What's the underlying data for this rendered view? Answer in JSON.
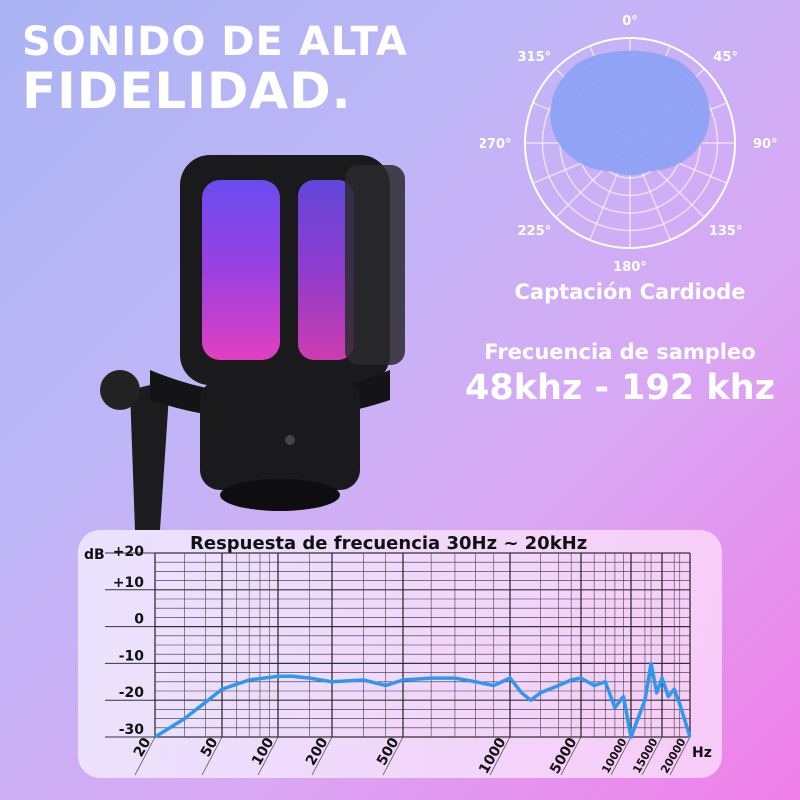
{
  "headline": {
    "line1": "SONIDO DE ALTA",
    "line2": "FIDELIDAD."
  },
  "polar": {
    "angle_labels": [
      "0°",
      "45°",
      "90°",
      "135°",
      "180°",
      "225°",
      "270°",
      "315°"
    ],
    "pattern": "cardioid",
    "fill_color": "#8ea2f4",
    "caption": "Captación Cardiode"
  },
  "sampling": {
    "label": "Frecuencia de sampleo",
    "value": "48khz - 192 khz"
  },
  "colors": {
    "curve": "#2f98ee",
    "accent_bg_start": "#aab4f4",
    "accent_bg_end": "#f07ee8"
  },
  "chart_data": {
    "type": "line",
    "title": "Respuesta de frecuencia 30Hz ~ 20kHz",
    "ylabel": "dB",
    "xlabel": "Hz",
    "y_ticks": [
      "+20",
      "+10",
      "0",
      "-10",
      "-20",
      "-30"
    ],
    "ylim": [
      -30,
      20
    ],
    "x_ticks": [
      "20",
      "50",
      "100",
      "200",
      "500",
      "1000",
      "5000",
      "10000",
      "15000",
      "20000"
    ],
    "grid": true,
    "series": [
      {
        "x": [
          20,
          30,
          50,
          70,
          100,
          120,
          150,
          200,
          300,
          400,
          500,
          600,
          700,
          800,
          900,
          1000,
          1300,
          1600,
          2000,
          3000,
          4000,
          5000,
          6000,
          7000,
          8000,
          9000,
          10000,
          12000,
          13000,
          14000,
          15000,
          16000,
          17000,
          18000,
          20000
        ],
        "y": [
          -30,
          -25,
          -17,
          -14.5,
          -13.5,
          -13.5,
          -14,
          -15,
          -14.5,
          -16,
          -14.5,
          -14,
          -14,
          -15,
          -16,
          -14,
          -18,
          -20,
          -18,
          -16,
          -14.5,
          -14,
          -16,
          -15,
          -22,
          -19,
          -30,
          -20,
          -10,
          -18,
          -14,
          -19,
          -17,
          -21,
          -30
        ]
      }
    ]
  }
}
